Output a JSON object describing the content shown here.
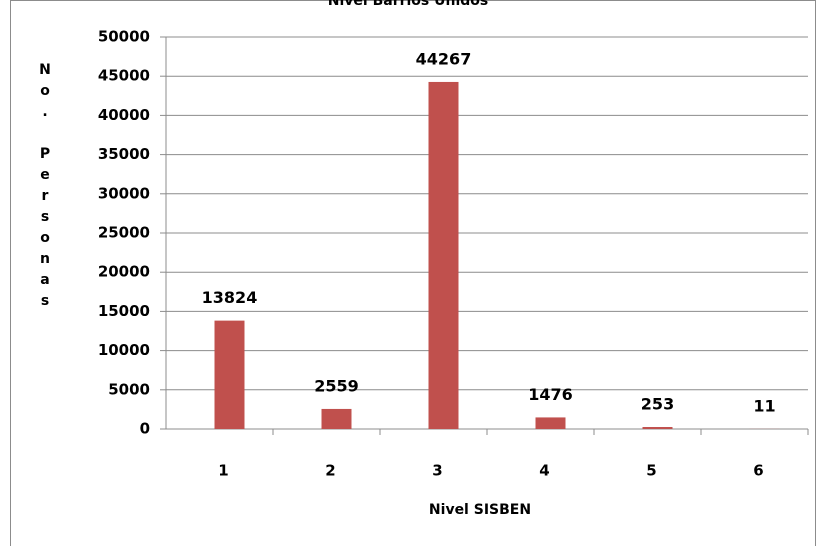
{
  "chart_data": {
    "type": "bar",
    "title": "Nivel Barrios Unidos",
    "categories": [
      "1",
      "2",
      "3",
      "4",
      "5",
      "6"
    ],
    "values": [
      13824,
      2559,
      44267,
      1476,
      253,
      11
    ],
    "color": "#c0504d",
    "x_label": "Nivel SISBEN",
    "y_label": "No. Personas",
    "ylim": [
      0,
      50000
    ],
    "yticks": [
      0,
      5000,
      10000,
      15000,
      20000,
      25000,
      30000,
      35000,
      40000,
      45000,
      50000
    ],
    "grid": true,
    "data_labels": true
  }
}
